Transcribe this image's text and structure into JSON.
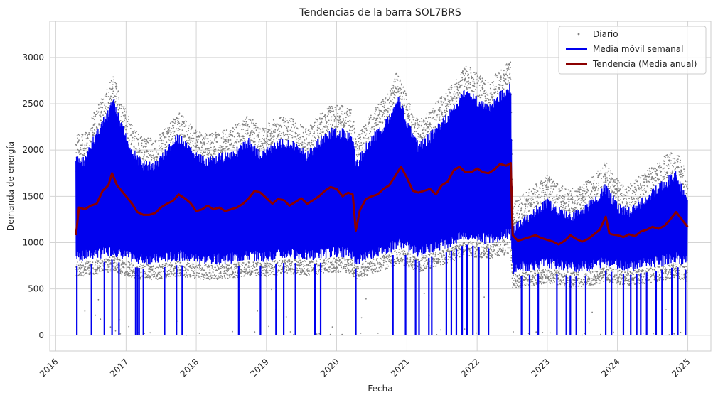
{
  "chart_data": {
    "type": "line",
    "title": "Tendencias de la barra SOL7BRS",
    "xlabel": "Fecha",
    "ylabel": "Demanda de energía",
    "xlim": [
      "2015-12-01",
      "2025-05-01"
    ],
    "ylim": [
      -170,
      3390
    ],
    "x_ticks": [
      "2016",
      "2017",
      "2018",
      "2019",
      "2020",
      "2021",
      "2022",
      "2023",
      "2024",
      "2025"
    ],
    "y_ticks": [
      0,
      500,
      1000,
      1500,
      2000,
      2500,
      3000
    ],
    "grid": true,
    "legend_position": "top-right",
    "series": [
      {
        "name": "Diario",
        "style": "points",
        "color": "#808080"
      },
      {
        "name": "Media móvil semanal",
        "style": "line",
        "color": "#0000ee"
      },
      {
        "name": "Tendencia (Media anual)",
        "style": "line",
        "color": "#8b0000"
      }
    ],
    "envelope": {
      "x": [
        "2016-04-15",
        "2016-06-01",
        "2016-08-01",
        "2016-10-01",
        "2016-10-25",
        "2016-12-01",
        "2017-02-01",
        "2017-04-01",
        "2017-06-01",
        "2017-08-01",
        "2017-10-01",
        "2017-12-01",
        "2018-02-01",
        "2018-04-01",
        "2018-06-01",
        "2018-08-01",
        "2018-10-01",
        "2018-12-01",
        "2019-02-01",
        "2019-04-01",
        "2019-06-01",
        "2019-08-01",
        "2019-10-01",
        "2019-12-01",
        "2020-02-01",
        "2020-03-20",
        "2020-04-15",
        "2020-06-01",
        "2020-08-01",
        "2020-10-01",
        "2020-11-15",
        "2021-01-01",
        "2021-03-01",
        "2021-05-01",
        "2021-07-01",
        "2021-09-01",
        "2021-11-01",
        "2022-01-01",
        "2022-03-01",
        "2022-05-01",
        "2022-06-25",
        "2022-07-05",
        "2022-09-01",
        "2022-11-01",
        "2023-01-01",
        "2023-03-01",
        "2023-05-01",
        "2023-07-01",
        "2023-09-01",
        "2023-11-01",
        "2024-01-01",
        "2024-03-01",
        "2024-05-01",
        "2024-07-01",
        "2024-09-01",
        "2024-11-01",
        "2024-12-31"
      ],
      "upper": [
        2000,
        2000,
        2300,
        2500,
        2650,
        2400,
        2100,
        1950,
        1950,
        2100,
        2250,
        2100,
        2000,
        2000,
        2050,
        2100,
        2200,
        2050,
        2150,
        2200,
        2150,
        2050,
        2200,
        2300,
        2300,
        2250,
        1950,
        2150,
        2300,
        2450,
        2700,
        2400,
        2150,
        2250,
        2400,
        2550,
        2750,
        2650,
        2550,
        2700,
        2800,
        1250,
        1350,
        1450,
        1550,
        1450,
        1400,
        1450,
        1550,
        1700,
        1500,
        1450,
        1550,
        1650,
        1750,
        1850,
        1550
      ],
      "lower": [
        750,
        760,
        780,
        800,
        820,
        780,
        740,
        720,
        720,
        740,
        760,
        740,
        720,
        720,
        730,
        740,
        760,
        750,
        760,
        780,
        780,
        760,
        780,
        800,
        800,
        780,
        700,
        760,
        800,
        840,
        900,
        860,
        800,
        840,
        880,
        920,
        980,
        960,
        940,
        980,
        1000,
        620,
        640,
        660,
        680,
        660,
        640,
        640,
        660,
        700,
        670,
        650,
        670,
        690,
        710,
        740,
        700
      ]
    },
    "weekly_dropouts": [
      "2016-04-20",
      "2016-07-05",
      "2016-09-10",
      "2016-10-20",
      "2016-11-25",
      "2017-02-20",
      "2017-03-01",
      "2017-03-10",
      "2017-04-01",
      "2017-07-20",
      "2017-09-20",
      "2017-10-20",
      "2018-08-10",
      "2018-12-01",
      "2019-02-20",
      "2019-04-01",
      "2019-06-01",
      "2019-09-10",
      "2019-10-10",
      "2020-04-10",
      "2020-10-20",
      "2020-12-25",
      "2021-02-15",
      "2021-03-05",
      "2021-04-25",
      "2021-05-10",
      "2021-07-25",
      "2021-08-20",
      "2021-09-15",
      "2021-10-15",
      "2021-11-10",
      "2021-12-10",
      "2022-01-10",
      "2022-03-01",
      "2022-08-20",
      "2022-10-01",
      "2022-11-15",
      "2023-02-20",
      "2023-04-10",
      "2023-05-01",
      "2023-06-01",
      "2023-07-20",
      "2023-11-01",
      "2023-12-01",
      "2024-02-01",
      "2024-03-10",
      "2024-04-10",
      "2024-05-01",
      "2024-06-01",
      "2024-07-20",
      "2024-08-20",
      "2024-10-10",
      "2024-11-10",
      "2024-12-20"
    ],
    "annual_trend": {
      "x": [
        "2016-04-15",
        "2016-05-01",
        "2016-06-01",
        "2016-07-01",
        "2016-08-01",
        "2016-09-01",
        "2016-10-01",
        "2016-10-20",
        "2016-11-15",
        "2017-01-01",
        "2017-02-01",
        "2017-03-01",
        "2017-04-01",
        "2017-05-01",
        "2017-06-01",
        "2017-07-01",
        "2017-08-01",
        "2017-09-01",
        "2017-10-01",
        "2017-11-01",
        "2017-12-01",
        "2018-01-01",
        "2018-02-01",
        "2018-03-01",
        "2018-04-01",
        "2018-05-01",
        "2018-06-01",
        "2018-07-01",
        "2018-08-01",
        "2018-09-01",
        "2018-10-01",
        "2018-11-01",
        "2018-12-01",
        "2019-01-01",
        "2019-02-01",
        "2019-03-01",
        "2019-04-01",
        "2019-05-01",
        "2019-06-01",
        "2019-07-01",
        "2019-08-01",
        "2019-09-01",
        "2019-10-01",
        "2019-11-01",
        "2019-12-01",
        "2020-01-01",
        "2020-02-01",
        "2020-03-01",
        "2020-03-25",
        "2020-04-10",
        "2020-05-01",
        "2020-06-01",
        "2020-07-01",
        "2020-08-01",
        "2020-09-01",
        "2020-10-01",
        "2020-11-01",
        "2020-12-01",
        "2021-01-01",
        "2021-02-01",
        "2021-03-01",
        "2021-04-01",
        "2021-05-01",
        "2021-06-01",
        "2021-07-01",
        "2021-08-01",
        "2021-09-01",
        "2021-10-01",
        "2021-11-01",
        "2021-12-01",
        "2022-01-01",
        "2022-02-01",
        "2022-03-01",
        "2022-04-01",
        "2022-05-01",
        "2022-06-01",
        "2022-06-25",
        "2022-07-05",
        "2022-08-01",
        "2022-09-01",
        "2022-10-01",
        "2022-11-01",
        "2022-12-01",
        "2023-01-01",
        "2023-02-01",
        "2023-03-01",
        "2023-04-01",
        "2023-05-01",
        "2023-06-01",
        "2023-07-01",
        "2023-08-01",
        "2023-09-01",
        "2023-10-01",
        "2023-11-01",
        "2023-11-20",
        "2023-12-01",
        "2024-01-01",
        "2024-02-01",
        "2024-03-01",
        "2024-04-01",
        "2024-05-01",
        "2024-06-01",
        "2024-07-01",
        "2024-08-01",
        "2024-09-01",
        "2024-10-01",
        "2024-11-01",
        "2024-12-01",
        "2024-12-31"
      ],
      "y": [
        1080,
        1380,
        1360,
        1400,
        1420,
        1560,
        1620,
        1750,
        1620,
        1500,
        1420,
        1330,
        1300,
        1300,
        1320,
        1380,
        1420,
        1450,
        1520,
        1480,
        1430,
        1340,
        1360,
        1400,
        1360,
        1380,
        1340,
        1360,
        1380,
        1420,
        1480,
        1560,
        1540,
        1480,
        1420,
        1470,
        1460,
        1400,
        1440,
        1480,
        1420,
        1460,
        1500,
        1560,
        1600,
        1580,
        1500,
        1540,
        1520,
        1130,
        1350,
        1470,
        1500,
        1520,
        1580,
        1620,
        1720,
        1820,
        1700,
        1560,
        1540,
        1560,
        1580,
        1520,
        1620,
        1660,
        1780,
        1820,
        1760,
        1760,
        1800,
        1760,
        1750,
        1790,
        1850,
        1830,
        1860,
        1080,
        1020,
        1040,
        1060,
        1080,
        1050,
        1030,
        1010,
        980,
        1020,
        1080,
        1040,
        1010,
        1040,
        1090,
        1140,
        1280,
        1100,
        1090,
        1080,
        1060,
        1090,
        1070,
        1120,
        1140,
        1170,
        1150,
        1180,
        1250,
        1330,
        1250,
        1170
      ]
    }
  }
}
